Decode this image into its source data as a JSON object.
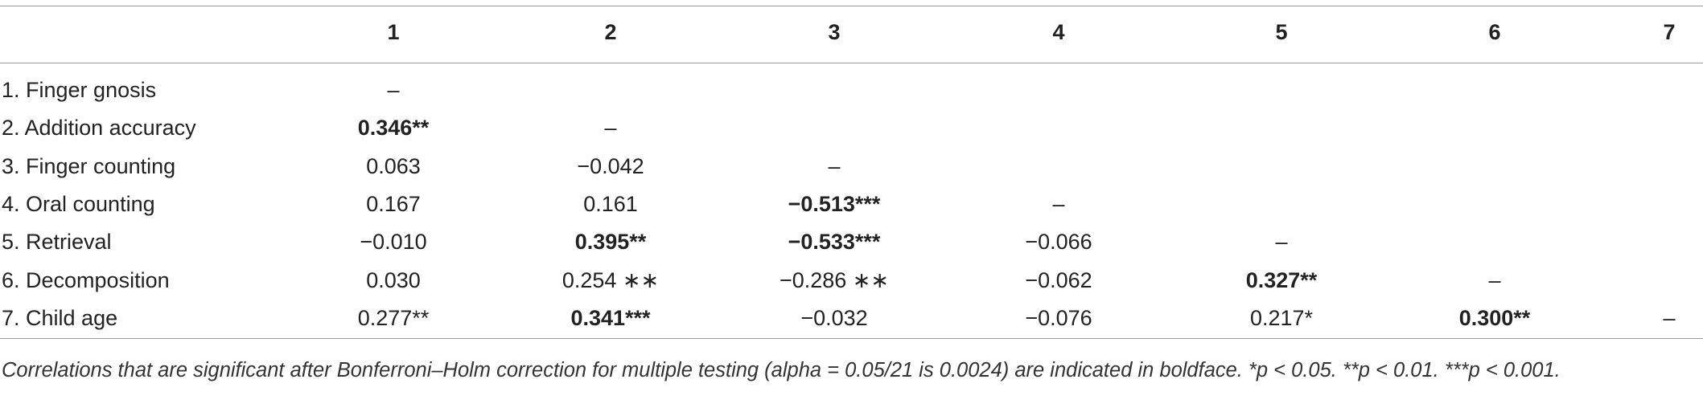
{
  "table": {
    "columns": [
      "1",
      "2",
      "3",
      "4",
      "5",
      "6",
      "7"
    ],
    "rows": [
      {
        "label": "1. Finger gnosis",
        "cells": [
          {
            "text": "–",
            "bold": false
          }
        ]
      },
      {
        "label": "2. Addition accuracy",
        "cells": [
          {
            "text": "0.346**",
            "bold": true
          },
          {
            "text": "–",
            "bold": false
          }
        ]
      },
      {
        "label": "3. Finger counting",
        "cells": [
          {
            "text": "0.063",
            "bold": false
          },
          {
            "text": "−0.042",
            "bold": false
          },
          {
            "text": "–",
            "bold": false
          }
        ]
      },
      {
        "label": "4. Oral counting",
        "cells": [
          {
            "text": "0.167",
            "bold": false
          },
          {
            "text": "0.161",
            "bold": false
          },
          {
            "text": "−0.513***",
            "bold": true
          },
          {
            "text": "–",
            "bold": false
          }
        ]
      },
      {
        "label": "5. Retrieval",
        "cells": [
          {
            "text": "−0.010",
            "bold": false
          },
          {
            "text": "0.395**",
            "bold": true
          },
          {
            "text": "−0.533***",
            "bold": true
          },
          {
            "text": "−0.066",
            "bold": false
          },
          {
            "text": "–",
            "bold": false
          }
        ]
      },
      {
        "label": "6. Decomposition",
        "cells": [
          {
            "text": "0.030",
            "bold": false
          },
          {
            "text": "0.254 ∗∗",
            "bold": false
          },
          {
            "text": "−0.286 ∗∗",
            "bold": false
          },
          {
            "text": "−0.062",
            "bold": false
          },
          {
            "text": "0.327**",
            "bold": true
          },
          {
            "text": "–",
            "bold": false
          }
        ]
      },
      {
        "label": "7. Child age",
        "cells": [
          {
            "text": "0.277**",
            "bold": false
          },
          {
            "text": "0.341***",
            "bold": true
          },
          {
            "text": "−0.032",
            "bold": false
          },
          {
            "text": "−0.076",
            "bold": false
          },
          {
            "text": "0.217*",
            "bold": false
          },
          {
            "text": "0.300**",
            "bold": true
          },
          {
            "text": "–",
            "bold": false
          }
        ]
      }
    ],
    "footnote": "Correlations that are significant after Bonferroni–Holm correction for multiple testing (alpha = 0.05/21 is 0.0024) are indicated in boldface. *p < 0.05. **p < 0.01. ***p < 0.001."
  }
}
